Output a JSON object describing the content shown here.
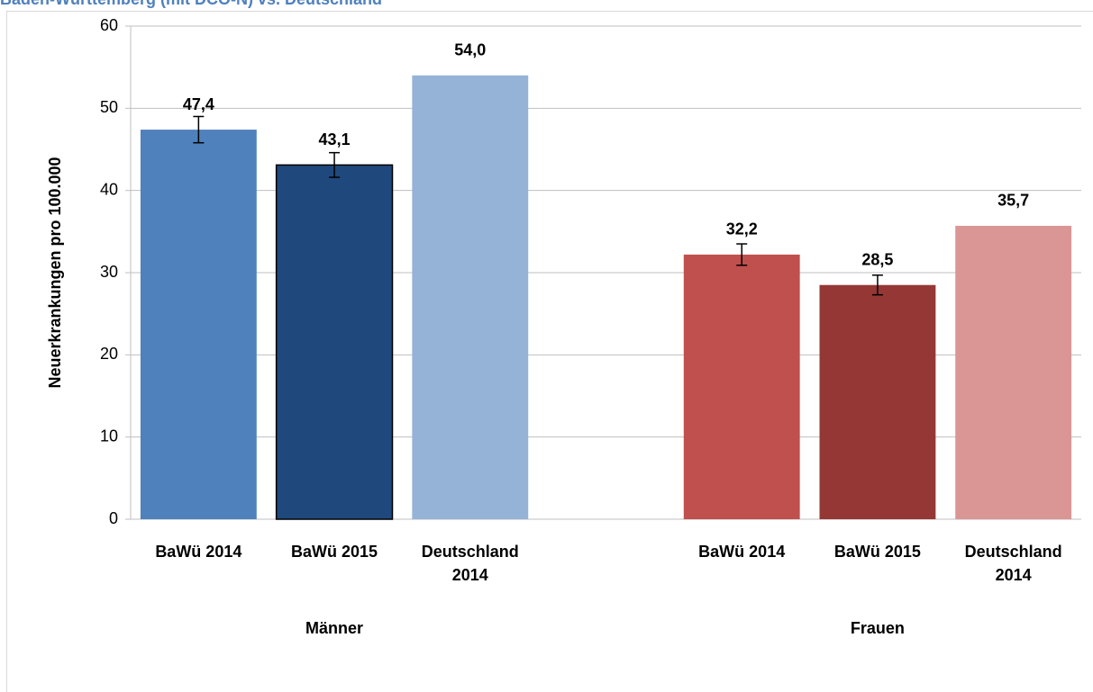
{
  "chart_data": {
    "type": "bar",
    "title": "Baden-Württemberg (mit DCO-N) vs. Deutschland",
    "y_label": "Neuerkrankungen pro 100.000",
    "categories": [
      "BaWü 2014",
      "BaWü 2015",
      "Deutschland 2014",
      null,
      "BaWü 2014",
      "BaWü 2015",
      "Deutschland 2014"
    ],
    "groups": [
      "Männer",
      "Frauen"
    ],
    "values": [
      47.4,
      43.1,
      54.0,
      null,
      32.2,
      28.5,
      35.7
    ],
    "value_labels": [
      "47,4",
      "43,1",
      "54,0",
      null,
      "32,2",
      "28,5",
      "35,7"
    ],
    "errors": [
      1.6,
      1.5,
      null,
      null,
      1.3,
      1.2,
      null
    ],
    "colors": [
      "#4f81bd",
      "#1f497d",
      "#95b3d7",
      null,
      "#c0504d",
      "#953735",
      "#d99694"
    ],
    "edgecolors": [
      null,
      "#000000",
      null,
      null,
      null,
      null,
      null
    ],
    "ylim": [
      0,
      60
    ],
    "yticks": [
      0,
      10,
      20,
      30,
      40,
      50,
      60
    ],
    "grid": true
  }
}
